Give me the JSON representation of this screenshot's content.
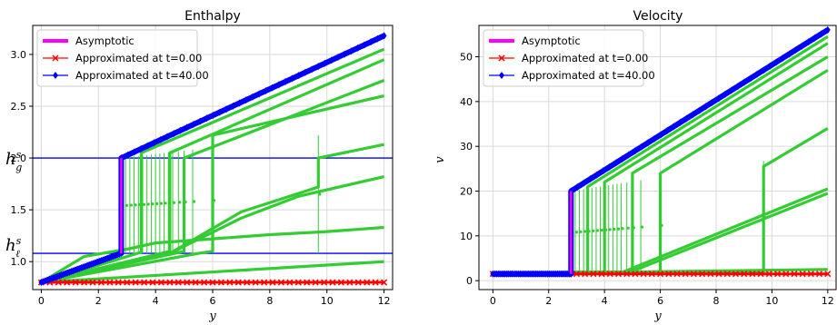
{
  "figure": {
    "background": "#ffffff",
    "colors": {
      "asymptotic": "#ff00ff",
      "initial": "#ff0000",
      "final": "#0000ff",
      "intermediate": "#33cc33",
      "reference": "#0000ff",
      "grid": "#d9d9d9"
    }
  },
  "chart_data": [
    {
      "type": "line",
      "title": "Enthalpy",
      "xlabel": "y",
      "ylabel": "",
      "xlim": [
        -0.3,
        12.3
      ],
      "ylim": [
        0.73,
        3.28
      ],
      "xticks": [
        0,
        2,
        4,
        6,
        8,
        10,
        12
      ],
      "yticks": [
        1.0,
        1.5,
        2.0,
        2.5,
        3.0
      ],
      "xtick_labels": [
        "0",
        "2",
        "4",
        "6",
        "8",
        "10",
        "12"
      ],
      "ytick_labels": [
        "1.0",
        "1.5",
        "2.0",
        "2.5",
        "3.0"
      ],
      "grid": true,
      "legend": {
        "position": "top-left",
        "entries": [
          "Asymptotic",
          "Approximated at t=0.00",
          "Approximated at t=40.00"
        ]
      },
      "reference_lines": [
        {
          "label": "h_g^s",
          "y": 2.0
        },
        {
          "label": "h_ℓ^s",
          "y": 1.08
        }
      ],
      "reference_labels": {
        "hg": "h",
        "hg_sup": "s",
        "hg_sub": "g",
        "hl": "h",
        "hl_sup": "s",
        "hl_sub": "ℓ"
      },
      "series": [
        {
          "name": "Asymptotic",
          "style": "line",
          "points": [
            [
              0,
              0.8
            ],
            [
              2.8,
              1.08
            ],
            [
              2.8,
              2.0
            ],
            [
              12,
              3.18
            ]
          ]
        },
        {
          "name": "Approximated at t=0.00",
          "style": "cross",
          "points": [
            [
              0,
              0.8
            ],
            [
              12,
              0.8
            ]
          ]
        },
        {
          "name": "Approximated at t=40.00",
          "style": "diamond",
          "points": [
            [
              0,
              0.8
            ],
            [
              2.8,
              1.08
            ],
            [
              2.8,
              2.0
            ],
            [
              12,
              3.18
            ]
          ]
        }
      ],
      "intermediate_fronts": [
        2.8,
        2.95,
        3.1,
        3.25,
        3.4,
        3.55,
        3.7,
        3.85,
        4.0,
        4.15,
        4.3,
        4.45,
        4.6,
        4.8,
        5.0,
        5.3,
        6.0,
        9.7
      ],
      "intermediate_curves": [
        {
          "points": [
            [
              0,
              0.8
            ],
            [
              12,
              1.0
            ]
          ]
        },
        {
          "points": [
            [
              0,
              0.8
            ],
            [
              1.5,
              1.05
            ],
            [
              3.0,
              1.12
            ],
            [
              4.0,
              1.18
            ],
            [
              6.0,
              1.22
            ],
            [
              8.0,
              1.26
            ],
            [
              10.0,
              1.29
            ],
            [
              12.0,
              1.33
            ]
          ]
        },
        {
          "points": [
            [
              0,
              0.8
            ],
            [
              4.5,
              1.08
            ],
            [
              7.0,
              1.42
            ],
            [
              9.0,
              1.63
            ],
            [
              12.0,
              1.82
            ]
          ]
        },
        {
          "points": [
            [
              0,
              0.8
            ],
            [
              4.5,
              1.08
            ],
            [
              7.0,
              1.48
            ],
            [
              9.7,
              1.72
            ],
            [
              9.7,
              2.0
            ],
            [
              12.0,
              2.13
            ]
          ]
        },
        {
          "points": [
            [
              0,
              0.8
            ],
            [
              5.5,
              1.08
            ],
            [
              6.0,
              1.1
            ],
            [
              6.0,
              2.22
            ],
            [
              12.0,
              2.6
            ]
          ]
        },
        {
          "points": [
            [
              0,
              0.8
            ],
            [
              5.0,
              1.1
            ],
            [
              5.0,
              2.0
            ],
            [
              12.0,
              2.75
            ]
          ]
        },
        {
          "points": [
            [
              0,
              0.8
            ],
            [
              4.5,
              1.1
            ],
            [
              4.5,
              2.05
            ],
            [
              12.0,
              2.95
            ]
          ]
        },
        {
          "points": [
            [
              0,
              0.8
            ],
            [
              3.5,
              1.09
            ],
            [
              3.5,
              2.05
            ],
            [
              12.0,
              3.05
            ]
          ]
        }
      ]
    },
    {
      "type": "line",
      "title": "Velocity",
      "xlabel": "y",
      "ylabel": "v",
      "xlim": [
        -0.5,
        12.3
      ],
      "ylim": [
        -2,
        57
      ],
      "xticks": [
        0,
        2,
        4,
        6,
        8,
        10,
        12
      ],
      "yticks": [
        0,
        10,
        20,
        30,
        40,
        50
      ],
      "xtick_labels": [
        "0",
        "2",
        "4",
        "6",
        "8",
        "10",
        "12"
      ],
      "ytick_labels": [
        "0",
        "10",
        "20",
        "30",
        "40",
        "50"
      ],
      "grid": true,
      "legend": {
        "position": "top-left",
        "entries": [
          "Asymptotic",
          "Approximated at t=0.00",
          "Approximated at t=40.00"
        ]
      },
      "series": [
        {
          "name": "Asymptotic",
          "style": "line",
          "points": [
            [
              0,
              1.5
            ],
            [
              2.8,
              1.5
            ],
            [
              2.8,
              20
            ],
            [
              12,
              56
            ]
          ]
        },
        {
          "name": "Approximated at t=0.00",
          "style": "cross",
          "points": [
            [
              0,
              1.5
            ],
            [
              12,
              1.5
            ]
          ]
        },
        {
          "name": "Approximated at t=40.00",
          "style": "diamond",
          "points": [
            [
              0,
              1.5
            ],
            [
              2.8,
              1.5
            ],
            [
              2.8,
              20
            ],
            [
              12,
              56
            ]
          ]
        }
      ],
      "intermediate_fronts": [
        2.8,
        2.95,
        3.1,
        3.25,
        3.4,
        3.55,
        3.7,
        3.85,
        4.0,
        4.15,
        4.3,
        4.45,
        4.6,
        4.8,
        5.0,
        5.3,
        6.0,
        9.7
      ],
      "intermediate_curves": [
        {
          "points": [
            [
              0,
              1.5
            ],
            [
              12,
              2.5
            ]
          ]
        },
        {
          "points": [
            [
              0,
              1.5
            ],
            [
              4.5,
              1.5
            ],
            [
              12,
              20.5
            ]
          ]
        },
        {
          "points": [
            [
              0,
              1.5
            ],
            [
              4.8,
              1.6
            ],
            [
              12,
              19.5
            ]
          ]
        },
        {
          "points": [
            [
              0,
              1.5
            ],
            [
              9.7,
              1.8
            ],
            [
              9.7,
              25.5
            ],
            [
              12,
              34
            ]
          ]
        },
        {
          "points": [
            [
              0,
              1.5
            ],
            [
              6.0,
              2
            ],
            [
              6.0,
              24
            ],
            [
              12,
              47
            ]
          ]
        },
        {
          "points": [
            [
              0,
              1.5
            ],
            [
              5.0,
              2
            ],
            [
              5.0,
              24
            ],
            [
              12,
              50
            ]
          ]
        },
        {
          "points": [
            [
              0,
              1.5
            ],
            [
              4.0,
              2
            ],
            [
              4.0,
              22
            ],
            [
              12,
              53
            ]
          ]
        },
        {
          "points": [
            [
              0,
              1.5
            ],
            [
              3.4,
              2
            ],
            [
              3.4,
              21
            ],
            [
              12,
              54.5
            ]
          ]
        }
      ]
    }
  ]
}
